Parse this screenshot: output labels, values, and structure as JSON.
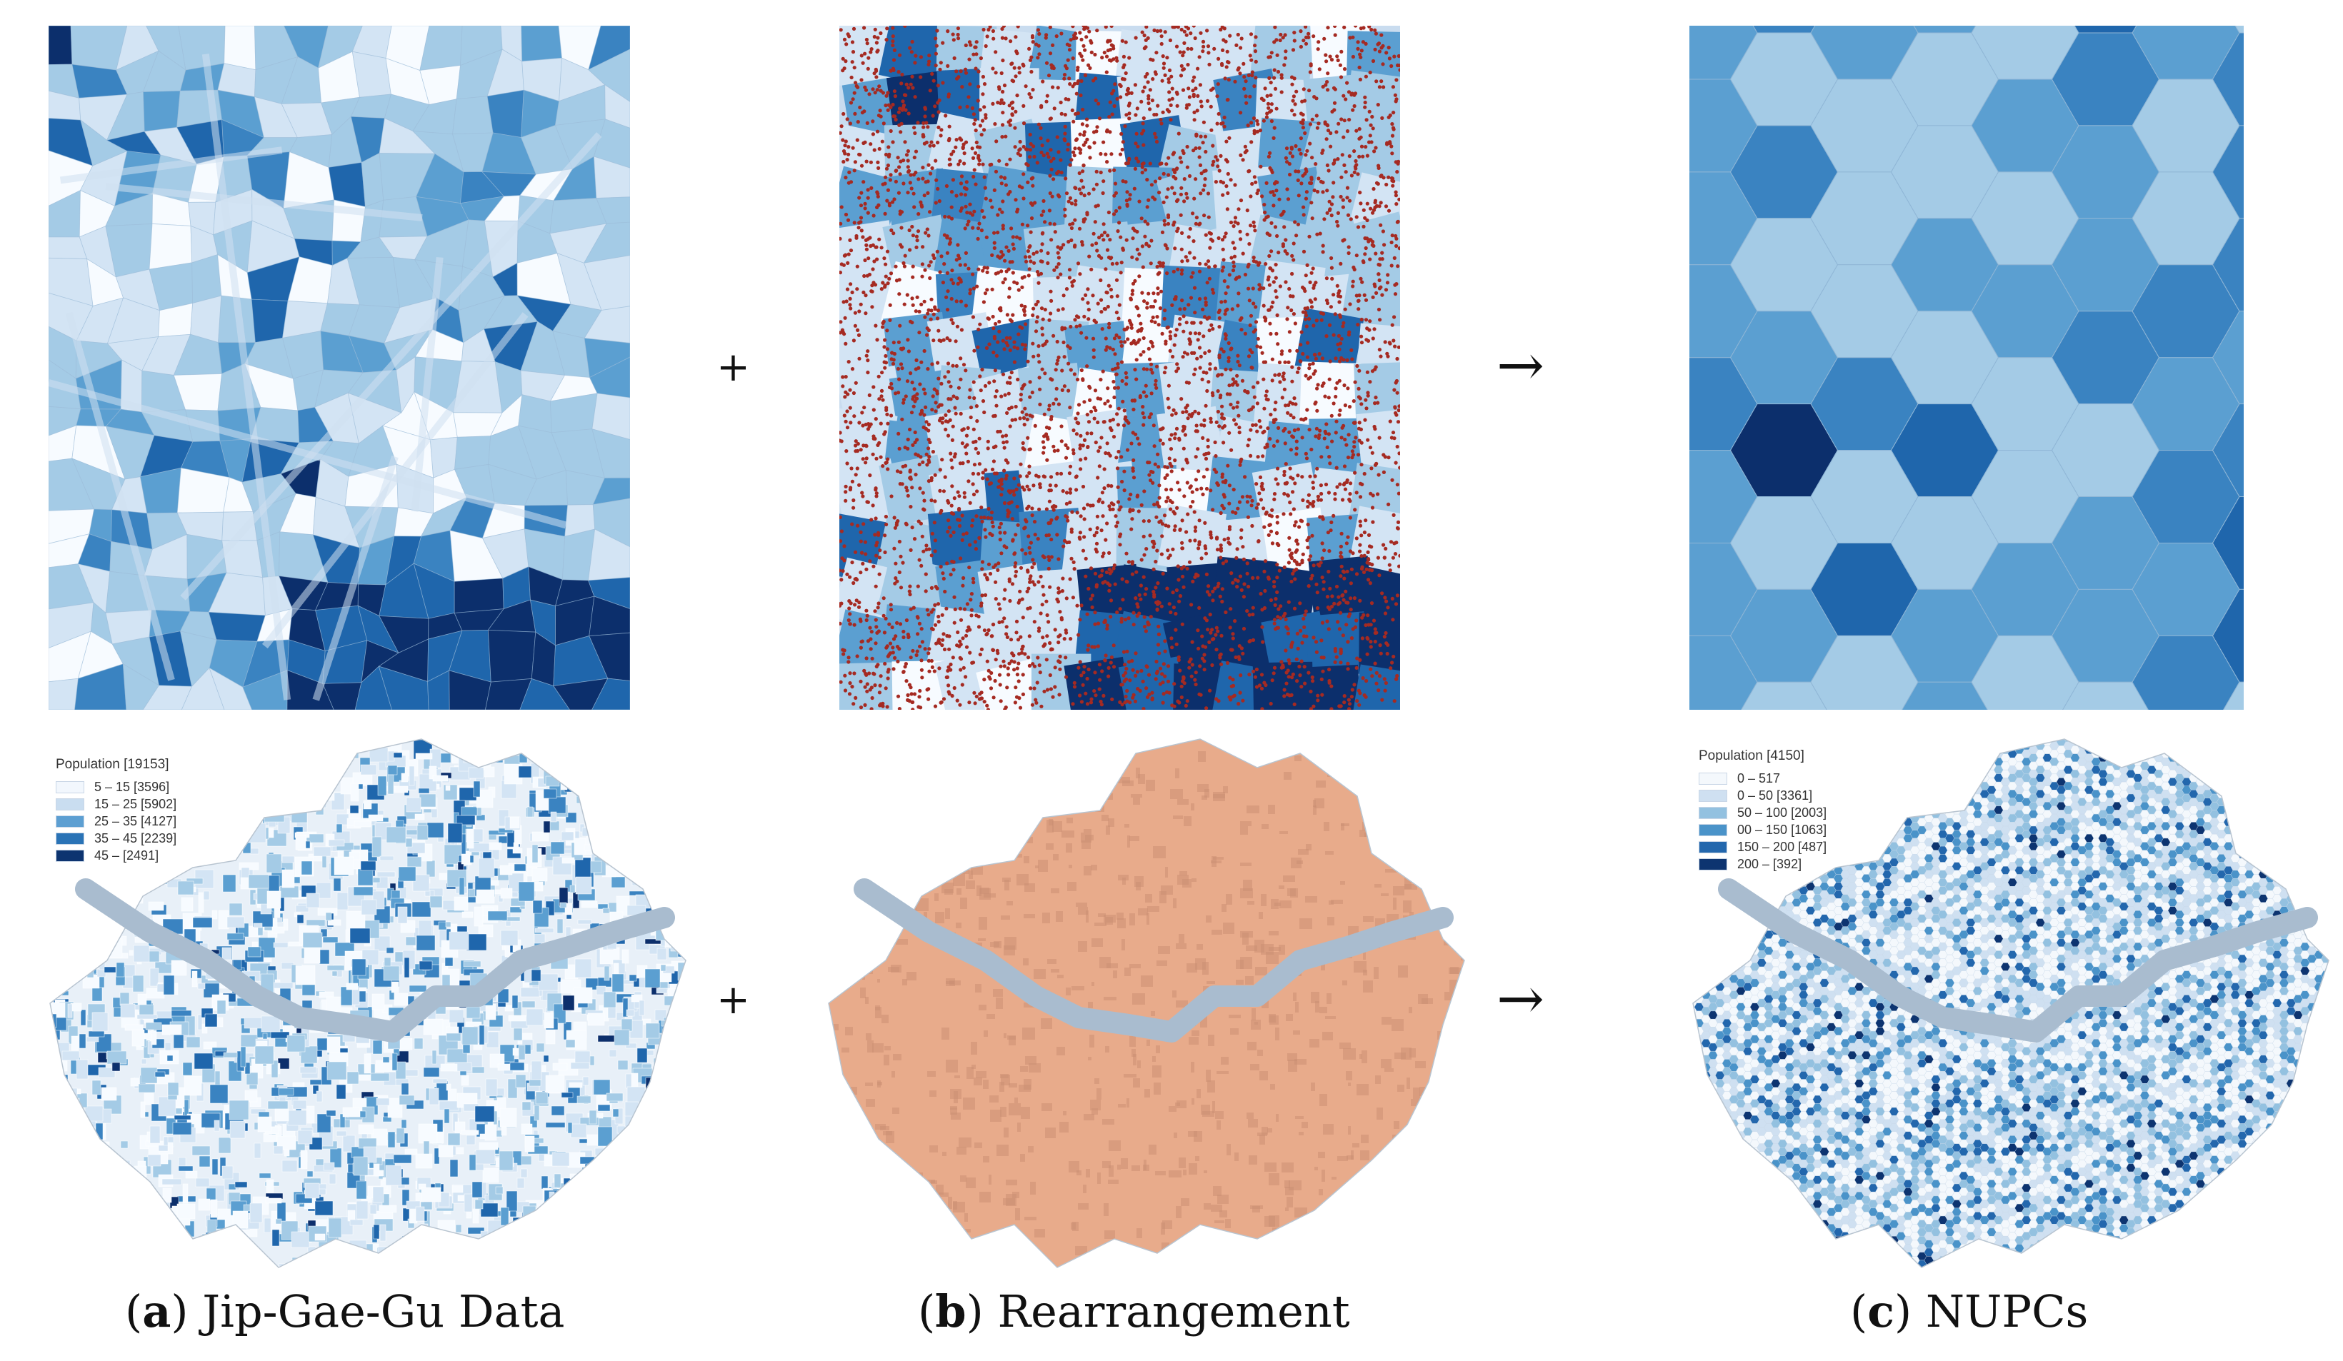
{
  "operators": {
    "plus": "+",
    "arrow": "→"
  },
  "captions": {
    "a": {
      "letter": "a",
      "text": "Jip-Gae-Gu Data"
    },
    "b": {
      "letter": "b",
      "text": "Rearrangement"
    },
    "c": {
      "letter": "c",
      "text": "NUPCs"
    }
  },
  "legend_a": {
    "title": "Population [19153]",
    "items": [
      {
        "label": "5 – 15 [3596]",
        "color": "#f2f7fd"
      },
      {
        "label": "15 – 25 [5902]",
        "color": "#c9ddf0"
      },
      {
        "label": "25 – 35 [4127]",
        "color": "#5d9fd2"
      },
      {
        "label": "35 – 45 [2239]",
        "color": "#2a73b6"
      },
      {
        "label": "45 – [2491]",
        "color": "#0d3470"
      }
    ]
  },
  "legend_c": {
    "title": "Population [4150]",
    "items": [
      {
        "label": "0 – 517",
        "color": "#f4f8fc"
      },
      {
        "label": "0 – 50 [3361]",
        "color": "#cfe0f1"
      },
      {
        "label": "50 – 100 [2003]",
        "color": "#93c1e0"
      },
      {
        "label": "00 – 150 [1063]",
        "color": "#4a93c9"
      },
      {
        "label": "150 – 200 [487]",
        "color": "#2367ad"
      },
      {
        "label": "200 – [392]",
        "color": "#0d3470"
      }
    ]
  },
  "colors": {
    "ramp": [
      "#f7fbff",
      "#d3e4f4",
      "#a4cbe6",
      "#5b9fd1",
      "#3a83c1",
      "#1f66ac",
      "#0c2f6c"
    ],
    "points": "#a52a22",
    "salmon": "#e8ab8b",
    "river": "#a9bccf"
  }
}
